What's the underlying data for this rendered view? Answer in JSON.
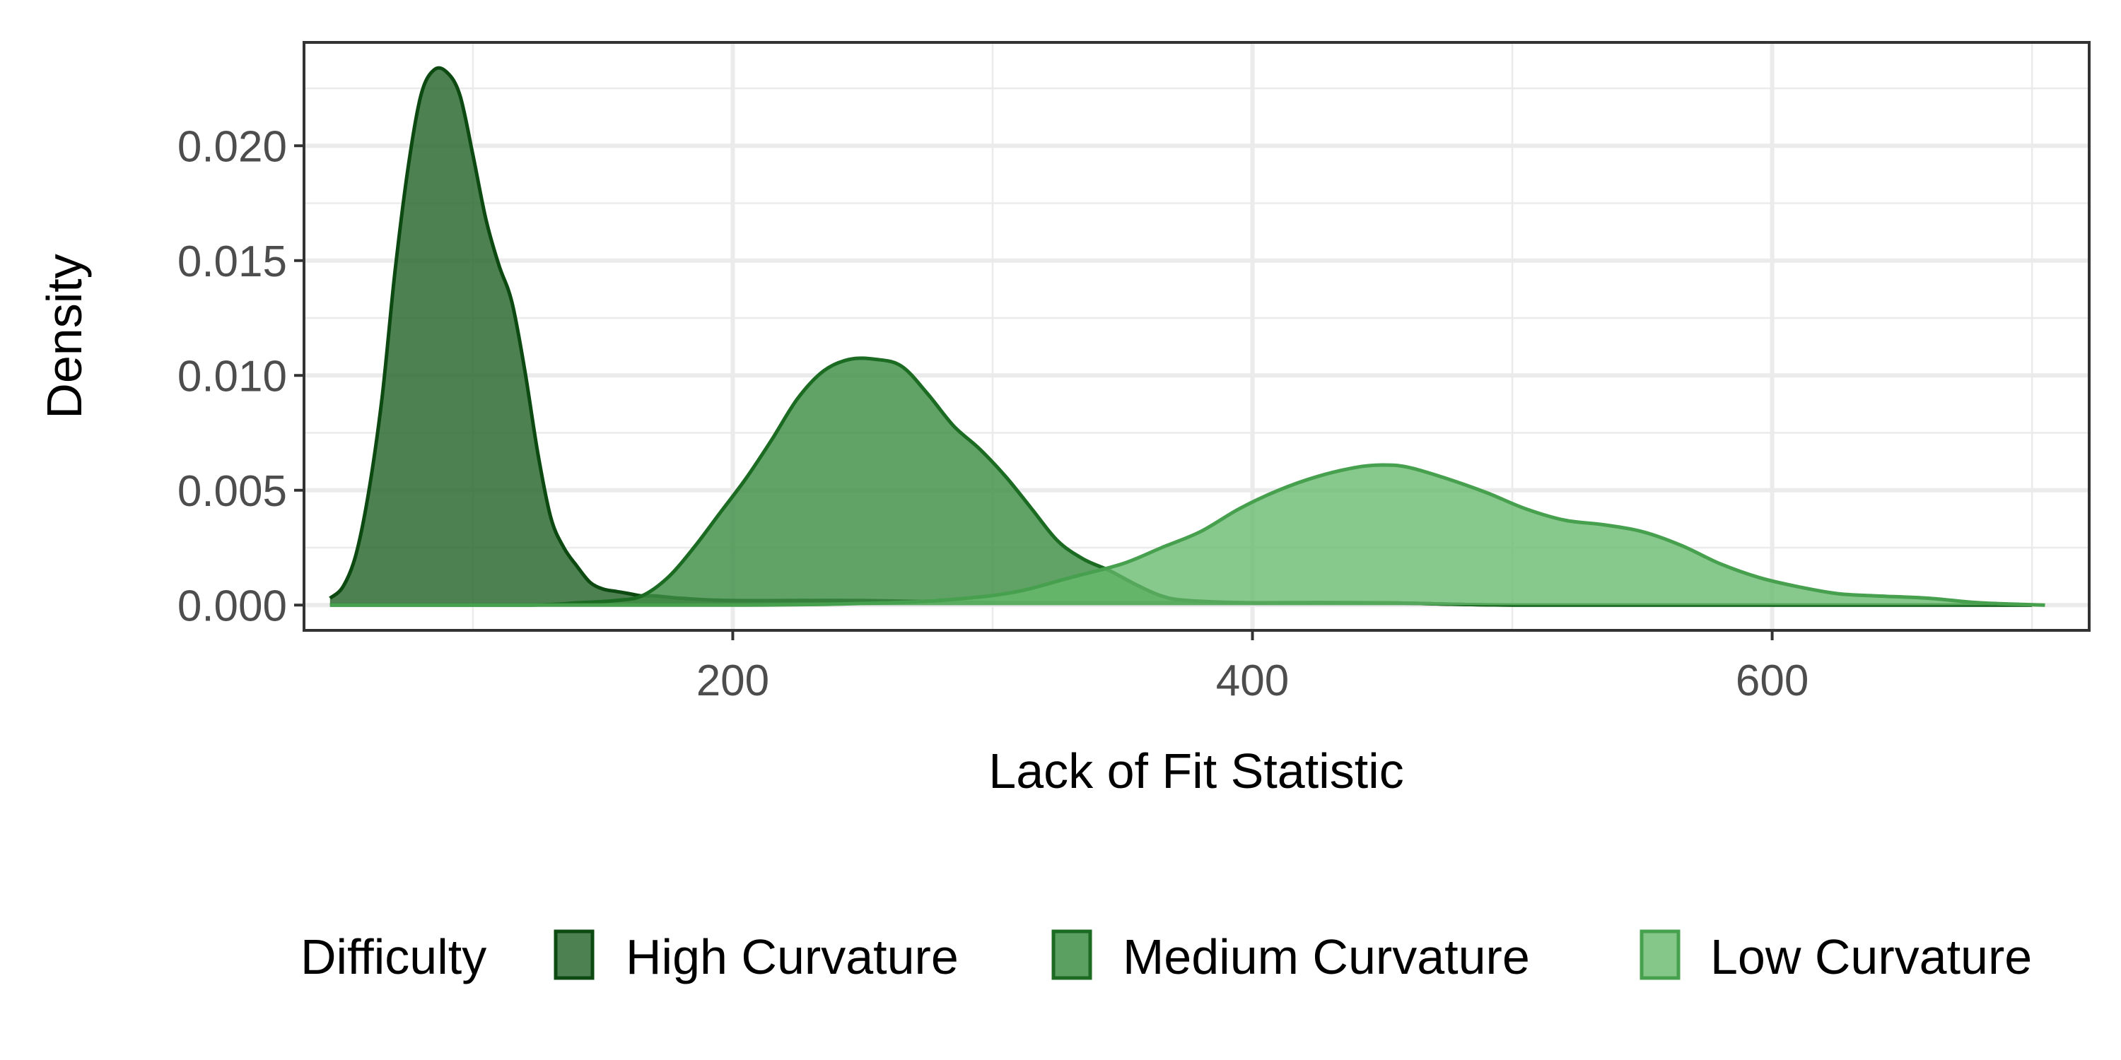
{
  "chart_data": {
    "type": "area",
    "xlabel": "Lack of Fit Statistic",
    "ylabel": "Density",
    "xlim": [
      35,
      722
    ],
    "ylim": [
      -0.0011,
      0.0245
    ],
    "x_ticks": [
      200,
      400,
      600
    ],
    "x_tick_labels": [
      "200",
      "400",
      "600"
    ],
    "y_ticks": [
      0.0,
      0.005,
      0.01,
      0.015,
      0.02
    ],
    "y_tick_labels": [
      "0.000",
      "0.005",
      "0.010",
      "0.015",
      "0.020"
    ],
    "grid": true,
    "legend": {
      "title": "Difficulty",
      "position": "bottom",
      "entries": [
        "High Curvature",
        "Medium Curvature",
        "Low Curvature"
      ]
    },
    "series": [
      {
        "name": "High Curvature",
        "fill": "#2e6b33",
        "stroke": "#0d4a12",
        "points": [
          [
            45,
            0.0003
          ],
          [
            50,
            0.0008
          ],
          [
            55,
            0.0022
          ],
          [
            60,
            0.005
          ],
          [
            65,
            0.009
          ],
          [
            70,
            0.0145
          ],
          [
            75,
            0.019
          ],
          [
            80,
            0.0222
          ],
          [
            85,
            0.0233
          ],
          [
            90,
            0.0232
          ],
          [
            95,
            0.0222
          ],
          [
            100,
            0.0196
          ],
          [
            105,
            0.0168
          ],
          [
            110,
            0.0148
          ],
          [
            115,
            0.0132
          ],
          [
            120,
            0.0102
          ],
          [
            125,
            0.0066
          ],
          [
            130,
            0.0038
          ],
          [
            135,
            0.0025
          ],
          [
            140,
            0.0017
          ],
          [
            145,
            0.001
          ],
          [
            150,
            0.0007
          ],
          [
            155,
            0.0006
          ],
          [
            160,
            0.0005
          ],
          [
            165,
            0.0004
          ],
          [
            170,
            0.0004
          ],
          [
            180,
            0.0003
          ],
          [
            200,
            0.0002
          ],
          [
            250,
            0.0002
          ],
          [
            300,
            0.0001
          ],
          [
            350,
            0.0001
          ],
          [
            400,
            0.0001
          ],
          [
            450,
            0.0001
          ],
          [
            500,
            0.0
          ],
          [
            600,
            0.0
          ],
          [
            700,
            0.0
          ]
        ]
      },
      {
        "name": "Medium Curvature",
        "fill": "#3e8e45",
        "stroke": "#1b6b22",
        "points": [
          [
            45,
            0.0
          ],
          [
            120,
            0.0
          ],
          [
            140,
            0.0001
          ],
          [
            155,
            0.0002
          ],
          [
            165,
            0.0004
          ],
          [
            175,
            0.0012
          ],
          [
            185,
            0.0025
          ],
          [
            195,
            0.004
          ],
          [
            205,
            0.0055
          ],
          [
            215,
            0.0072
          ],
          [
            225,
            0.009
          ],
          [
            235,
            0.0102
          ],
          [
            245,
            0.0107
          ],
          [
            255,
            0.0107
          ],
          [
            265,
            0.0104
          ],
          [
            275,
            0.0092
          ],
          [
            285,
            0.0078
          ],
          [
            295,
            0.0068
          ],
          [
            305,
            0.0056
          ],
          [
            315,
            0.0042
          ],
          [
            325,
            0.0028
          ],
          [
            335,
            0.002
          ],
          [
            345,
            0.0015
          ],
          [
            355,
            0.0009
          ],
          [
            365,
            0.0004
          ],
          [
            375,
            0.0002
          ],
          [
            400,
            0.0001
          ],
          [
            450,
            0.0001
          ],
          [
            500,
            0.0
          ],
          [
            600,
            0.0
          ],
          [
            700,
            0.0
          ]
        ]
      },
      {
        "name": "Low Curvature",
        "fill": "#65b96b",
        "stroke": "#46a04e",
        "points": [
          [
            45,
            0.0
          ],
          [
            200,
            0.0
          ],
          [
            260,
            0.0001
          ],
          [
            290,
            0.0003
          ],
          [
            310,
            0.0006
          ],
          [
            330,
            0.0012
          ],
          [
            350,
            0.0018
          ],
          [
            365,
            0.0025
          ],
          [
            380,
            0.0032
          ],
          [
            395,
            0.0042
          ],
          [
            410,
            0.005
          ],
          [
            425,
            0.0056
          ],
          [
            440,
            0.006
          ],
          [
            450,
            0.0061
          ],
          [
            460,
            0.006
          ],
          [
            475,
            0.0055
          ],
          [
            490,
            0.0049
          ],
          [
            505,
            0.0042
          ],
          [
            520,
            0.0037
          ],
          [
            535,
            0.0035
          ],
          [
            550,
            0.0032
          ],
          [
            565,
            0.0026
          ],
          [
            580,
            0.0018
          ],
          [
            595,
            0.0012
          ],
          [
            610,
            0.0008
          ],
          [
            625,
            0.0005
          ],
          [
            640,
            0.0004
          ],
          [
            660,
            0.0003
          ],
          [
            680,
            0.0001
          ],
          [
            705,
            0.0
          ]
        ]
      }
    ]
  }
}
